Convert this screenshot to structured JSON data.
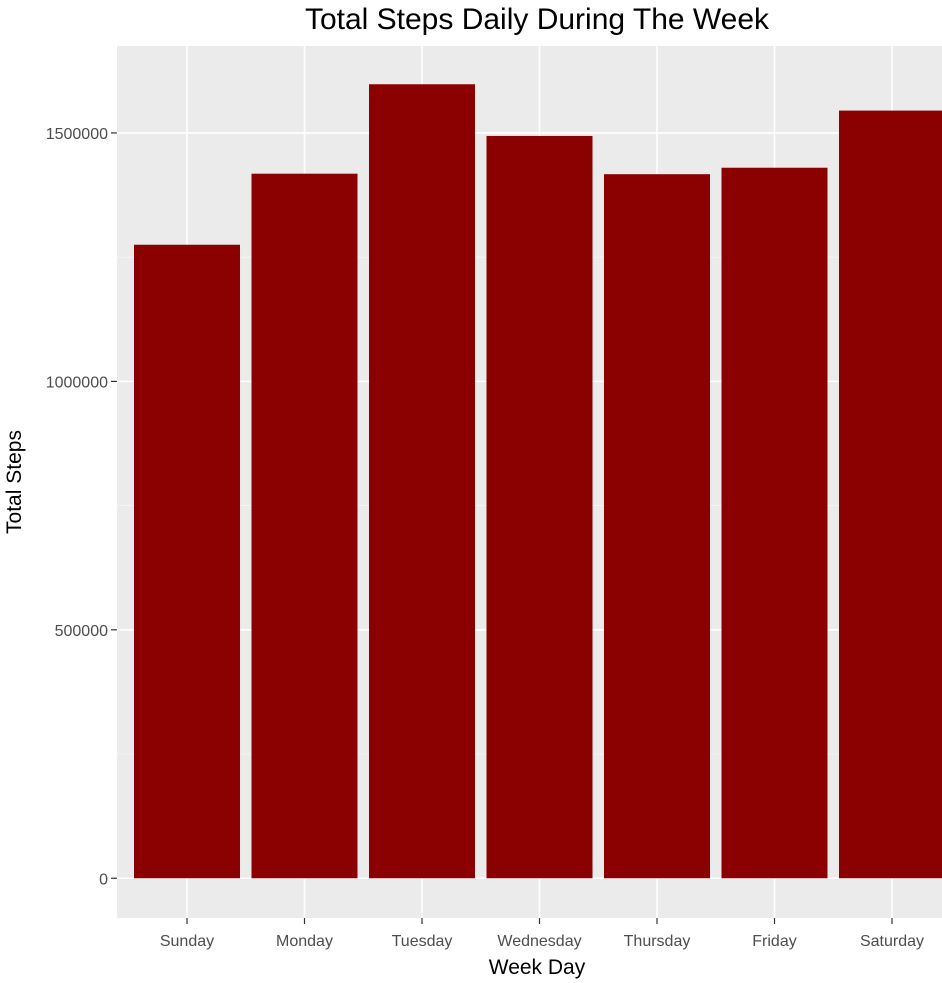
{
  "chart_data": {
    "type": "bar",
    "title": "Total Steps Daily During The Week",
    "xlabel": "Week Day",
    "ylabel": "Total Steps",
    "categories": [
      "Sunday",
      "Monday",
      "Tuesday",
      "Wednesday",
      "Thursday",
      "Friday",
      "Saturday"
    ],
    "values": [
      1275000,
      1418000,
      1598000,
      1494000,
      1417000,
      1430000,
      1545000
    ],
    "ylim": [
      -80000,
      1675000
    ],
    "yticks": [
      0,
      500000,
      1000000,
      1500000
    ],
    "ytick_labels": [
      "0",
      "500000",
      "1000000",
      "1500000"
    ],
    "grid": true,
    "legend": "none",
    "colors": {
      "bar": "#8b0000",
      "panel_background": "#ebebeb",
      "grid": "#ffffff"
    }
  }
}
